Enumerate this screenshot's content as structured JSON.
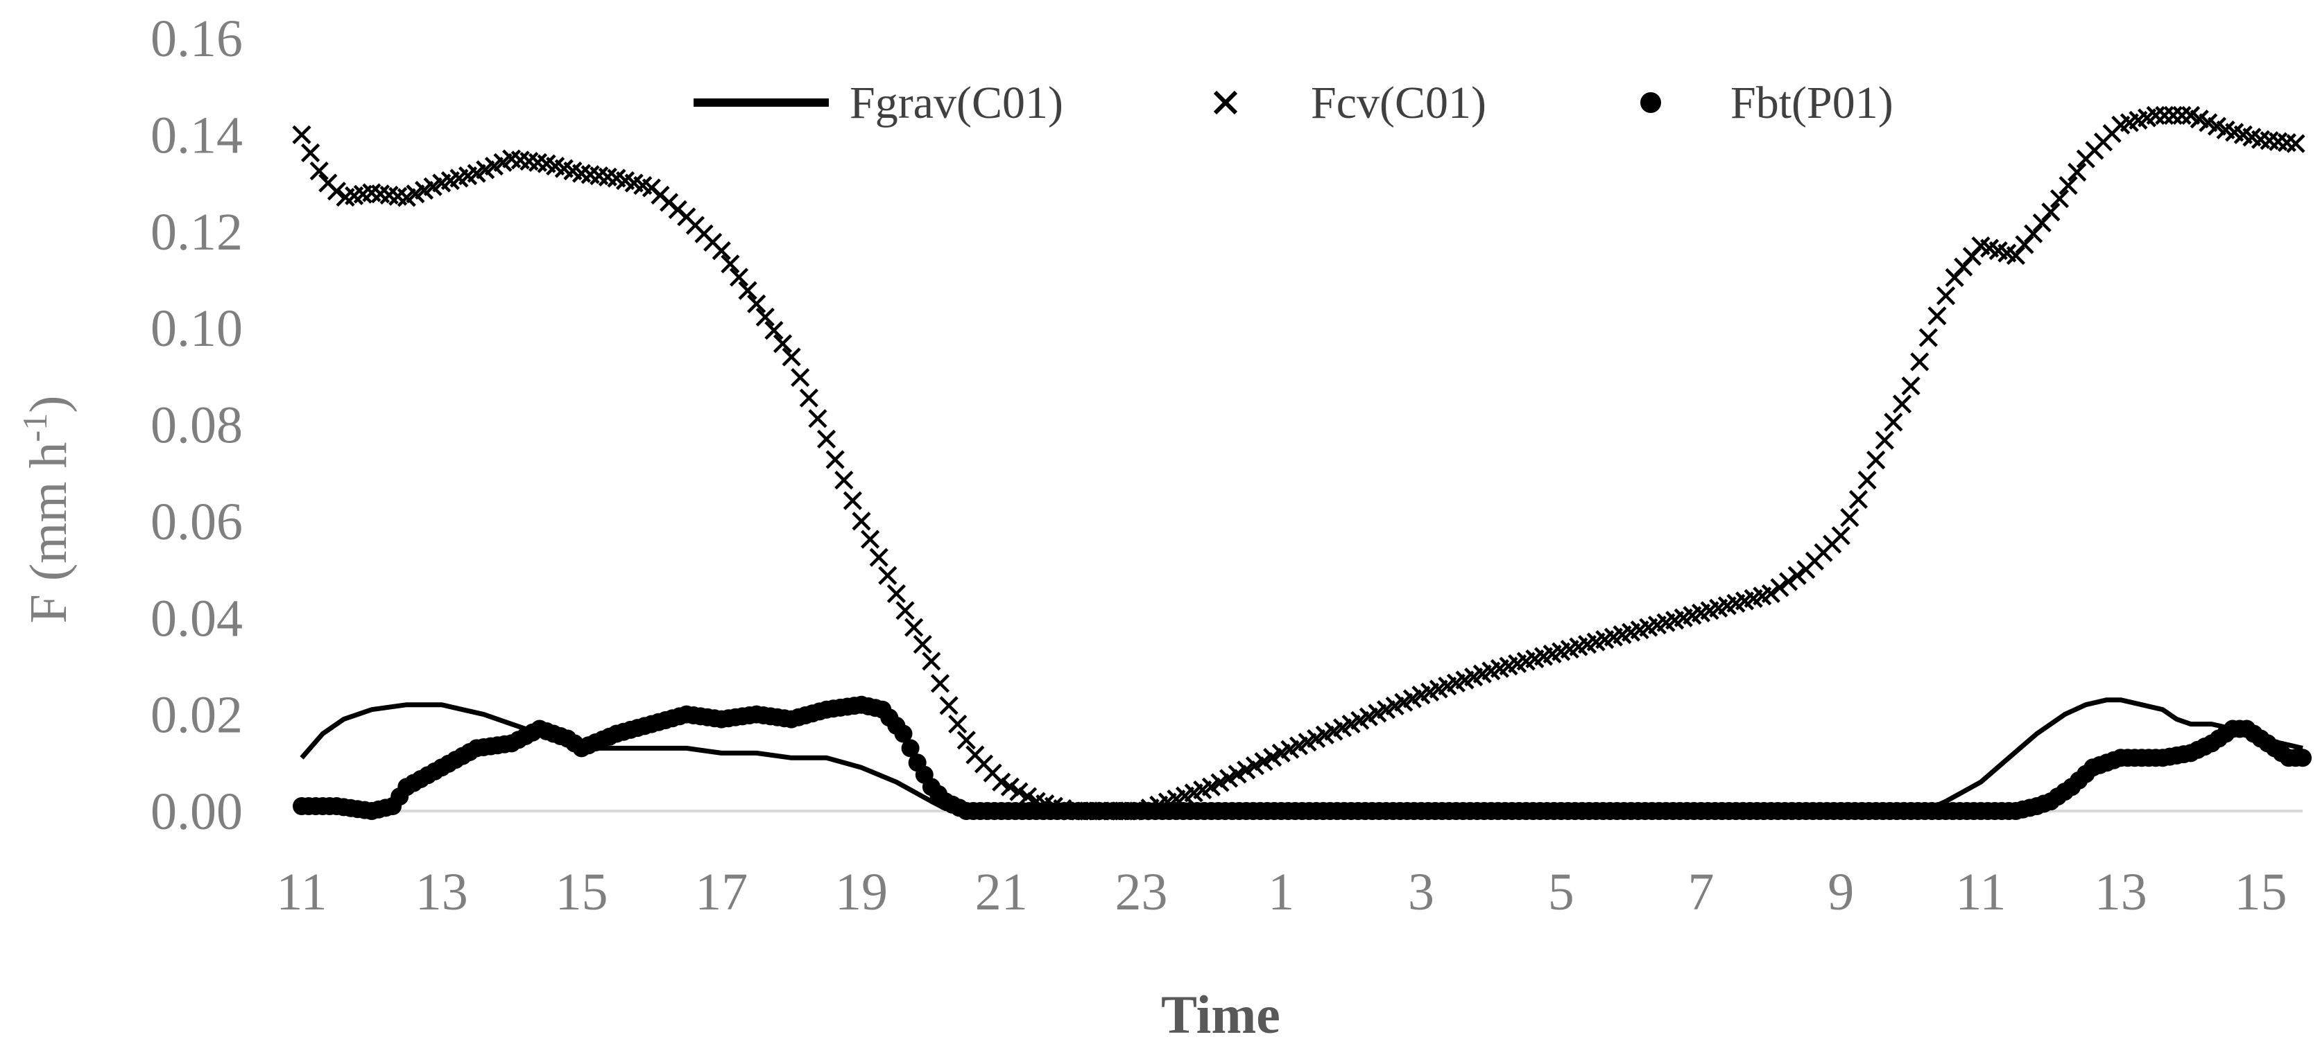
{
  "colors": {
    "axis": "#d9d9d9",
    "text": "#7f7f7f",
    "series": "#000000"
  },
  "chart_data": {
    "type": "line",
    "title": "",
    "xlabel": "Time",
    "ylabel_main": "F (mm h",
    "ylabel_sup": "-1",
    "ylabel_close": ")",
    "ylim": [
      0,
      0.16
    ],
    "yticks": [
      "0.00",
      "0.02",
      "0.04",
      "0.06",
      "0.08",
      "0.10",
      "0.12",
      "0.14",
      "0.16"
    ],
    "xlim": [
      11,
      39.6
    ],
    "xticks": [
      {
        "pos": 11,
        "label": "11"
      },
      {
        "pos": 13,
        "label": "13"
      },
      {
        "pos": 15,
        "label": "15"
      },
      {
        "pos": 17,
        "label": "17"
      },
      {
        "pos": 19,
        "label": "19"
      },
      {
        "pos": 21,
        "label": "21"
      },
      {
        "pos": 23,
        "label": "23"
      },
      {
        "pos": 25,
        "label": "1"
      },
      {
        "pos": 27,
        "label": "3"
      },
      {
        "pos": 29,
        "label": "5"
      },
      {
        "pos": 31,
        "label": "7"
      },
      {
        "pos": 33,
        "label": "9"
      },
      {
        "pos": 35,
        "label": "11"
      },
      {
        "pos": 37,
        "label": "13"
      },
      {
        "pos": 39,
        "label": "15"
      }
    ],
    "legend_position": "top-center",
    "series": [
      {
        "name": "Fgrav(C01)",
        "style": "line",
        "x": [
          11,
          11.3,
          11.6,
          12,
          12.5,
          13,
          13.3,
          13.6,
          14,
          14.4,
          14.8,
          15,
          15.5,
          16,
          16.5,
          17,
          17.5,
          18,
          18.5,
          19,
          19.5,
          20,
          20.2,
          21,
          22,
          24,
          26,
          28,
          30,
          32,
          34,
          34.2,
          34.5,
          35,
          35.4,
          35.8,
          36.2,
          36.5,
          36.8,
          37,
          37.3,
          37.6,
          37.8,
          38,
          38.3,
          38.6,
          39,
          39.3,
          39.6
        ],
        "y": [
          0.011,
          0.016,
          0.019,
          0.021,
          0.022,
          0.022,
          0.021,
          0.02,
          0.018,
          0.016,
          0.014,
          0.013,
          0.013,
          0.013,
          0.013,
          0.012,
          0.012,
          0.011,
          0.011,
          0.009,
          0.006,
          0.002,
          0.0005,
          0,
          0,
          0,
          0,
          0,
          0,
          0,
          0,
          0,
          0.002,
          0.006,
          0.011,
          0.016,
          0.02,
          0.022,
          0.023,
          0.023,
          0.022,
          0.021,
          0.019,
          0.018,
          0.018,
          0.017,
          0.015,
          0.014,
          0.013
        ]
      },
      {
        "name": "Fcv(C01)",
        "style": "marker-x",
        "x": [
          11,
          11.3,
          11.6,
          12,
          12.5,
          13,
          13.5,
          14,
          14.5,
          15,
          15.5,
          16,
          16.5,
          17,
          17.5,
          18,
          18.5,
          19,
          19.5,
          20,
          20.3,
          20.6,
          21,
          21.5,
          22,
          22.5,
          23,
          24,
          25,
          26,
          27,
          28,
          29,
          30,
          31,
          32,
          32.5,
          33,
          33.3,
          33.6,
          34,
          34.3,
          34.6,
          35,
          35.5,
          36,
          36.5,
          37,
          37.5,
          38,
          38.5,
          39,
          39.6
        ],
        "y": [
          0.14,
          0.131,
          0.127,
          0.128,
          0.127,
          0.13,
          0.132,
          0.135,
          0.134,
          0.132,
          0.131,
          0.129,
          0.123,
          0.116,
          0.105,
          0.094,
          0.077,
          0.06,
          0.045,
          0.031,
          0.02,
          0.012,
          0.006,
          0.002,
          0,
          0,
          0,
          0.005,
          0.012,
          0.018,
          0.024,
          0.029,
          0.033,
          0.037,
          0.041,
          0.045,
          0.05,
          0.057,
          0.066,
          0.076,
          0.088,
          0.1,
          0.11,
          0.117,
          0.115,
          0.124,
          0.135,
          0.142,
          0.144,
          0.144,
          0.141,
          0.139,
          0.138
        ]
      },
      {
        "name": "Fbt(P01)",
        "style": "marker-dot",
        "x": [
          11,
          11.5,
          12,
          12.3,
          12.5,
          13,
          13.5,
          14,
          14.4,
          14.8,
          15,
          15.5,
          16,
          16.5,
          17,
          17.5,
          18,
          18.5,
          19,
          19.3,
          19.6,
          19.8,
          20,
          20.2,
          20.5,
          21,
          22,
          24,
          26,
          28,
          30,
          32,
          34,
          35,
          35.5,
          35.8,
          36,
          36.3,
          36.6,
          37,
          37.3,
          37.6,
          38,
          38.3,
          38.6,
          38.8,
          39,
          39.2,
          39.4,
          39.6
        ],
        "y": [
          0.001,
          0.001,
          0,
          0.001,
          0.005,
          0.009,
          0.013,
          0.014,
          0.017,
          0.015,
          0.013,
          0.016,
          0.018,
          0.02,
          0.019,
          0.02,
          0.019,
          0.021,
          0.022,
          0.021,
          0.016,
          0.01,
          0.005,
          0.002,
          0,
          0,
          0,
          0,
          0,
          0,
          0,
          0,
          0,
          0,
          0,
          0.001,
          0.002,
          0.005,
          0.009,
          0.011,
          0.011,
          0.011,
          0.012,
          0.014,
          0.017,
          0.017,
          0.015,
          0.013,
          0.011,
          0.011
        ]
      }
    ]
  }
}
